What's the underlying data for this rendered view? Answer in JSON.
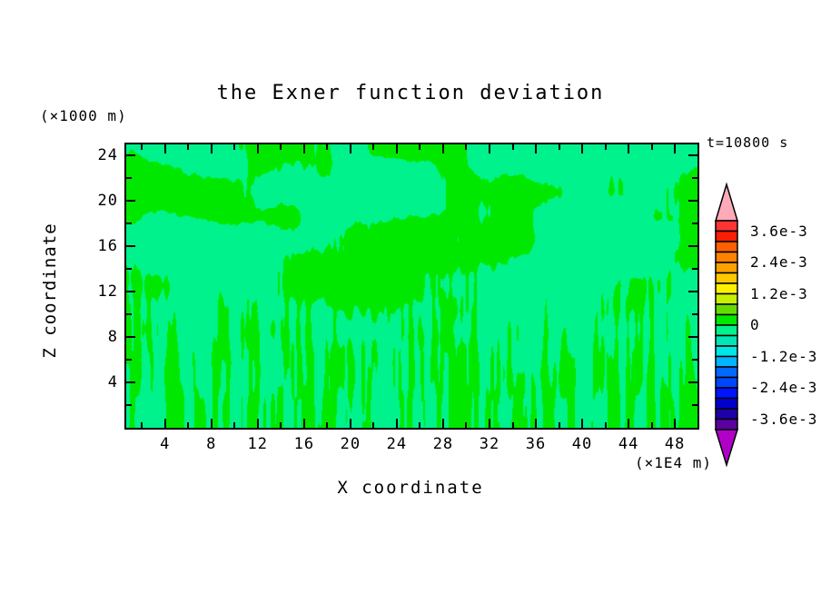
{
  "title": "the Exner function deviation",
  "time_label": "t=10800 s",
  "axes": {
    "x_label": "X coordinate",
    "x_unit": "(×1E4 m)",
    "y_label": "Z coordinate",
    "y_unit": "(×1000 m)"
  },
  "chart_data": {
    "type": "filled_contour",
    "title": "the Exner function deviation",
    "time_annotation": "t=10800 s",
    "xlabel": "X coordinate",
    "x_unit_scale": "(×1E4 m)",
    "ylabel": "Z coordinate",
    "y_unit_scale": "(×1000 m)",
    "xlim": [
      0.65,
      49.95
    ],
    "ylim": [
      0,
      25
    ],
    "x_major_ticks": [
      4,
      8,
      12,
      16,
      20,
      24,
      28,
      32,
      36,
      40,
      44,
      48
    ],
    "x_minor_ticks": [
      2,
      6,
      10,
      14,
      18,
      22,
      26,
      30,
      34,
      38,
      42,
      46
    ],
    "y_major_ticks": [
      4,
      8,
      12,
      16,
      20,
      24
    ],
    "y_minor_ticks": [
      2,
      6,
      10,
      14,
      18,
      22
    ],
    "contour_interval": 0.0004,
    "visible_bands": [
      {
        "range_label": "0 to 0.4e-3",
        "color": "#00e800"
      },
      {
        "range_label": "-0.4e-3 to 0",
        "color": "#00f28c"
      }
    ],
    "field_description": "Exner function deviation field: values everywhere within ±0.4e-3 of zero; large smooth anomaly blobs in upper half, fine vertical turbulent streaks near the surface",
    "colorbar": {
      "value_top": 0.004,
      "value_bottom": -0.004,
      "segment_step": 0.0004,
      "labels": [
        {
          "text": "3.6e-3",
          "boundary_index": 1
        },
        {
          "text": "2.4e-3",
          "boundary_index": 4
        },
        {
          "text": "1.2e-3",
          "boundary_index": 7
        },
        {
          "text": "0",
          "boundary_index": 10
        },
        {
          "text": "-1.2e-3",
          "boundary_index": 13
        },
        {
          "text": "-2.4e-3",
          "boundary_index": 16
        },
        {
          "text": "-3.6e-3",
          "boundary_index": 19
        }
      ],
      "segment_colors_top_to_bottom": [
        "#fc3434",
        "#fb1d06",
        "#fd6000",
        "#ff8200",
        "#ffa000",
        "#ffc800",
        "#fff000",
        "#c8f000",
        "#64dc00",
        "#00e800",
        "#00f28c",
        "#00e6b4",
        "#00e6e6",
        "#00b4ff",
        "#0069ff",
        "#0046ff",
        "#0014ff",
        "#0000cd",
        "#1e00aa",
        "#5a00a0"
      ],
      "top_arrow_color": "#ffaab9",
      "bottom_arrow_color": "#b000c8"
    },
    "pattern": {
      "positive_color": "#00e800",
      "negative_color": "#00f28c",
      "seed": [
        11,
        23,
        37,
        53,
        71
      ],
      "coarse_scales": [
        [
          80,
          52
        ],
        [
          36,
          26
        ]
      ],
      "streak_scales": [
        [
          6.5,
          105
        ],
        [
          3.1,
          50
        ]
      ],
      "large_scale": [
        240,
        170
      ],
      "streak_weight_ramp": [
        0.32,
        0.95
      ],
      "threshold": 0
    }
  }
}
